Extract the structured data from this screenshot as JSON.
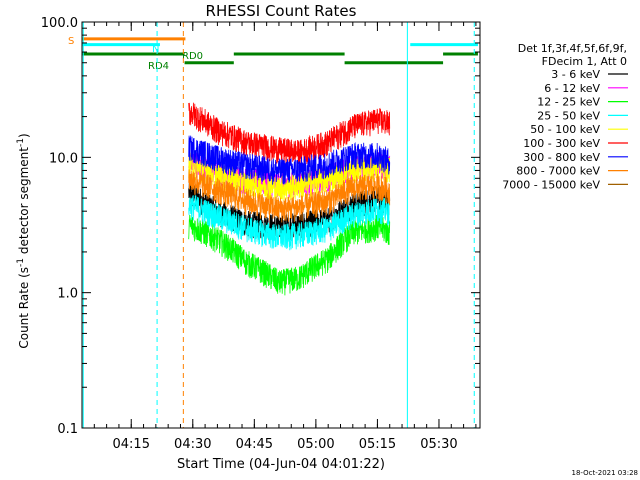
{
  "chart_data": {
    "type": "line",
    "title": "RHESSI Count Rates",
    "xlabel": "Start Time (04-Jun-04 04:01:22)",
    "ylabel_parts": [
      "Count Rate (s",
      "-1",
      " detector segment",
      "-1",
      ")"
    ],
    "yscale": "log",
    "ylim": [
      0.1,
      100.0
    ],
    "xlim_min": [
      2.0,
      99.0
    ],
    "x_ticks": [
      {
        "t": 14.0,
        "label": "04:15"
      },
      {
        "t": 29.0,
        "label": "04:30"
      },
      {
        "t": 44.0,
        "label": "04:45"
      },
      {
        "t": 59.0,
        "label": "05:00"
      },
      {
        "t": 74.0,
        "label": "05:15"
      },
      {
        "t": 89.0,
        "label": "05:30"
      }
    ],
    "y_ticks": [
      {
        "v": 0.1,
        "label": "0.1"
      },
      {
        "v": 1.0,
        "label": "1.0"
      },
      {
        "v": 10.0,
        "label": "10.0"
      },
      {
        "v": 100.0,
        "label": "100.0"
      }
    ],
    "legend_header": [
      "Det 1f,3f,4f,5f,6f,9f,",
      "FDecim 1, Att 0"
    ],
    "series": [
      {
        "name": "3 - 6 keV",
        "color": "#000000",
        "points": [
          [
            28,
            5.5
          ],
          [
            35,
            4.0
          ],
          [
            42,
            3.3
          ],
          [
            50,
            3.1
          ],
          [
            55,
            3.2
          ],
          [
            62,
            3.5
          ],
          [
            68,
            4.5
          ],
          [
            74,
            5.0
          ],
          [
            77,
            4.8
          ]
        ]
      },
      {
        "name": "6 - 12 keV",
        "color": "#ff00ff",
        "points": [
          [
            28,
            9.5
          ],
          [
            35,
            8.0
          ],
          [
            42,
            6.8
          ],
          [
            50,
            6.5
          ],
          [
            55,
            6.5
          ],
          [
            62,
            7.2
          ],
          [
            68,
            8.5
          ],
          [
            74,
            9.0
          ],
          [
            77,
            8.5
          ]
        ]
      },
      {
        "name": "12 - 25 keV",
        "color": "#00ff00",
        "points": [
          [
            28,
            3.2
          ],
          [
            35,
            2.5
          ],
          [
            42,
            1.7
          ],
          [
            50,
            1.2
          ],
          [
            55,
            1.3
          ],
          [
            62,
            1.8
          ],
          [
            68,
            2.8
          ],
          [
            74,
            3.1
          ],
          [
            77,
            2.8
          ]
        ]
      },
      {
        "name": "25 - 50 keV",
        "color": "#00ffff",
        "points": [
          [
            28,
            4.5
          ],
          [
            35,
            3.7
          ],
          [
            42,
            3.0
          ],
          [
            50,
            2.6
          ],
          [
            55,
            2.7
          ],
          [
            62,
            3.0
          ],
          [
            68,
            3.8
          ],
          [
            74,
            4.2
          ],
          [
            77,
            4.0
          ]
        ]
      },
      {
        "name": "50 - 100 keV",
        "color": "#ffff00",
        "points": [
          [
            28,
            9.0
          ],
          [
            35,
            7.5
          ],
          [
            42,
            6.5
          ],
          [
            50,
            6.0
          ],
          [
            55,
            6.2
          ],
          [
            62,
            7.0
          ],
          [
            68,
            8.0
          ],
          [
            74,
            8.5
          ],
          [
            77,
            8.2
          ]
        ]
      },
      {
        "name": "100 - 300 keV",
        "color": "#ff0000",
        "points": [
          [
            28,
            22.0
          ],
          [
            35,
            16.0
          ],
          [
            42,
            13.0
          ],
          [
            50,
            11.5
          ],
          [
            55,
            11.0
          ],
          [
            62,
            13.0
          ],
          [
            68,
            17.0
          ],
          [
            74,
            19.0
          ],
          [
            77,
            18.0
          ]
        ]
      },
      {
        "name": "300 - 800 keV",
        "color": "#0000ff",
        "points": [
          [
            28,
            12.0
          ],
          [
            35,
            10.0
          ],
          [
            42,
            8.8
          ],
          [
            50,
            8.0
          ],
          [
            55,
            8.2
          ],
          [
            62,
            9.0
          ],
          [
            68,
            10.5
          ],
          [
            74,
            10.5
          ],
          [
            77,
            9.5
          ]
        ]
      },
      {
        "name": "800 - 7000 keV",
        "color": "#ff8000",
        "points": [
          [
            28,
            7.0
          ],
          [
            35,
            5.8
          ],
          [
            42,
            4.8
          ],
          [
            50,
            4.2
          ],
          [
            55,
            4.3
          ],
          [
            62,
            4.8
          ],
          [
            68,
            6.0
          ],
          [
            74,
            6.2
          ],
          [
            77,
            5.7
          ]
        ]
      },
      {
        "name": "7000 - 15000 keV",
        "color": "#a06000",
        "points": []
      }
    ],
    "annotations": {
      "flags": [
        {
          "label": "S",
          "color": "#ff8000",
          "segments": [
            [
              2.0,
              27.2
            ]
          ],
          "level": 75.0
        },
        {
          "label": "N",
          "color": "#00ffff",
          "segments": [
            [
              2.0,
              21.0
            ],
            [
              82.0,
              98.5
            ]
          ],
          "level": 68.0
        },
        {
          "label": "RD0",
          "color": "#008000",
          "segments": [
            [
              2.0,
              27.0
            ],
            [
              39.0,
              66.0
            ],
            [
              90.0,
              98.5
            ]
          ],
          "level": 58.0
        },
        {
          "label": "RD4",
          "color": "#008000",
          "segments": [
            [
              27.0,
              39.0
            ],
            [
              66.0,
              90.0
            ]
          ],
          "level": 50.0
        }
      ],
      "vlines": [
        {
          "t": 2.3,
          "color": "#00ffff",
          "style": "solid"
        },
        {
          "t": 20.3,
          "color": "#00ffff",
          "style": "dashed"
        },
        {
          "t": 26.7,
          "color": "#ff8000",
          "style": "dashed"
        },
        {
          "t": 81.3,
          "color": "#00ffff",
          "style": "solid"
        },
        {
          "t": 97.6,
          "color": "#00ffff",
          "style": "dashed"
        }
      ]
    }
  },
  "footer_timestamp": "18-Oct-2021 03:28"
}
